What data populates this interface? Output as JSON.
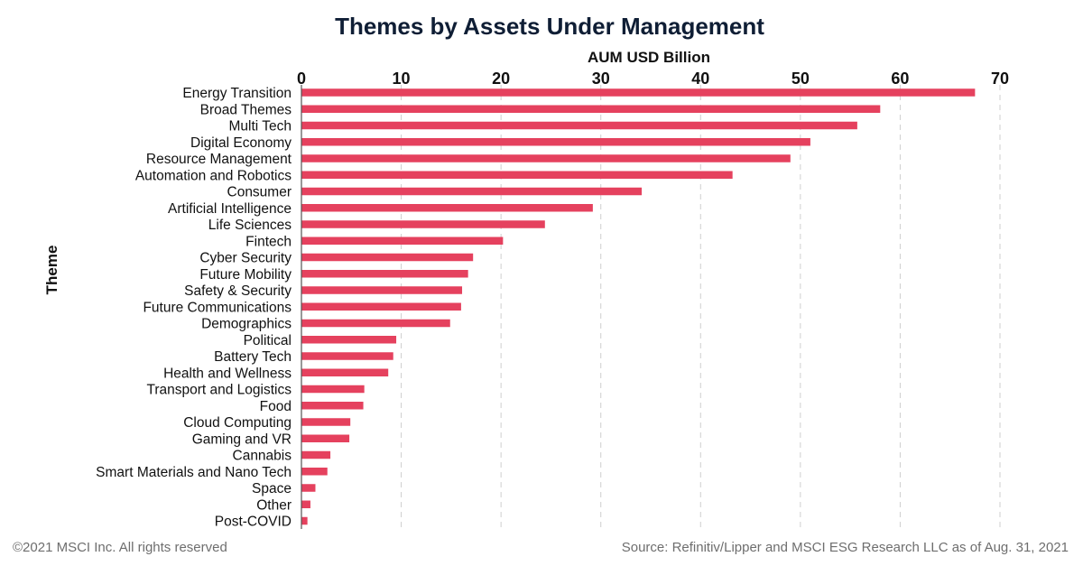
{
  "chart_data": {
    "type": "bar",
    "orientation": "horizontal",
    "title": "Themes by Assets Under Management",
    "xlabel": "AUM USD Billion",
    "ylabel": "Theme",
    "xlim": [
      0,
      70
    ],
    "x_ticks": [
      "0",
      "10",
      "20",
      "30",
      "40",
      "50",
      "60",
      "70"
    ],
    "x_axis_position": "top",
    "grid": true,
    "bar_color": "#e5415e",
    "categories": [
      "Energy Transition",
      "Broad Themes",
      "Multi Tech",
      "Digital Economy",
      "Resource Management",
      "Automation and Robotics",
      "Consumer",
      "Artificial Intelligence",
      "Life Sciences",
      "Fintech",
      "Cyber Security",
      "Future Mobility",
      "Safety & Security",
      "Future Communications",
      "Demographics",
      "Political",
      "Battery Tech",
      "Health and Wellness",
      "Transport and Logistics",
      "Food",
      "Cloud Computing",
      "Gaming and VR",
      "Cannabis",
      "Smart Materials and Nano Tech",
      "Space",
      "Other",
      "Post-COVID"
    ],
    "values": [
      67.5,
      58.0,
      55.7,
      51.0,
      49.0,
      43.2,
      34.1,
      29.2,
      24.4,
      20.2,
      17.2,
      16.7,
      16.1,
      16.0,
      14.9,
      9.5,
      9.2,
      8.7,
      6.3,
      6.2,
      4.9,
      4.8,
      2.9,
      2.6,
      1.4,
      0.9,
      0.6
    ]
  },
  "footer": {
    "copyright": "©2021 MSCI Inc. All rights reserved",
    "source": "Source: Refinitiv/Lipper and MSCI ESG Research LLC as of Aug. 31, 2021"
  }
}
